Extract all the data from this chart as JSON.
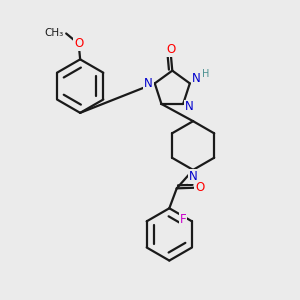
{
  "bg_color": "#ebebeb",
  "bond_color": "#1a1a1a",
  "bond_width": 1.6,
  "atom_colors": {
    "O": "#ff0000",
    "N": "#0000cc",
    "F": "#cc00cc",
    "H": "#4a9090",
    "C": "#1a1a1a"
  },
  "font_size": 8.5,
  "figsize": [
    3.0,
    3.0
  ],
  "dpi": 100
}
